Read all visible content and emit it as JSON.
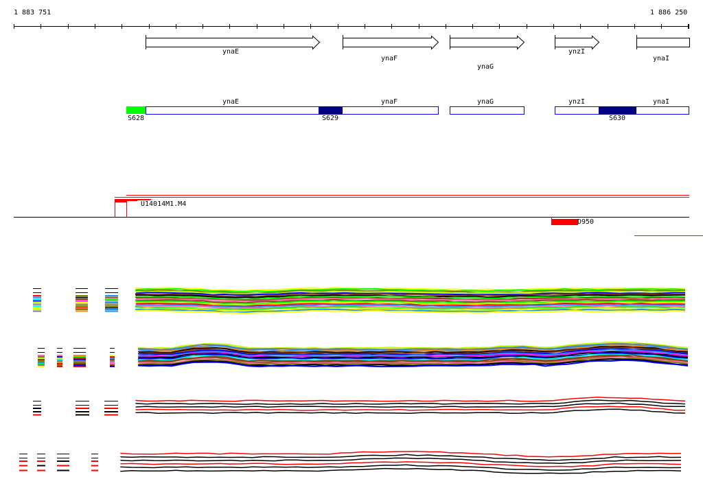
{
  "ruler": {
    "start_label": "1 883 751",
    "end_label": "1 886 250"
  },
  "genes": [
    {
      "name": "ynaE",
      "strand": "+"
    },
    {
      "name": "ynaF",
      "strand": "+"
    },
    {
      "name": "ynaG",
      "strand": "+"
    },
    {
      "name": "ynzI",
      "strand": "+"
    },
    {
      "name": "ynaI",
      "strand": "+"
    }
  ],
  "segments": [
    {
      "label": "S628",
      "color": "#00ff00"
    },
    {
      "label": "S629",
      "color": "#000080"
    },
    {
      "label": "S630",
      "color": "#000080"
    }
  ],
  "features": {
    "upper_label": "U14014M1.M4",
    "lower_label": "D950",
    "feature_color": "#ff0000"
  }
}
